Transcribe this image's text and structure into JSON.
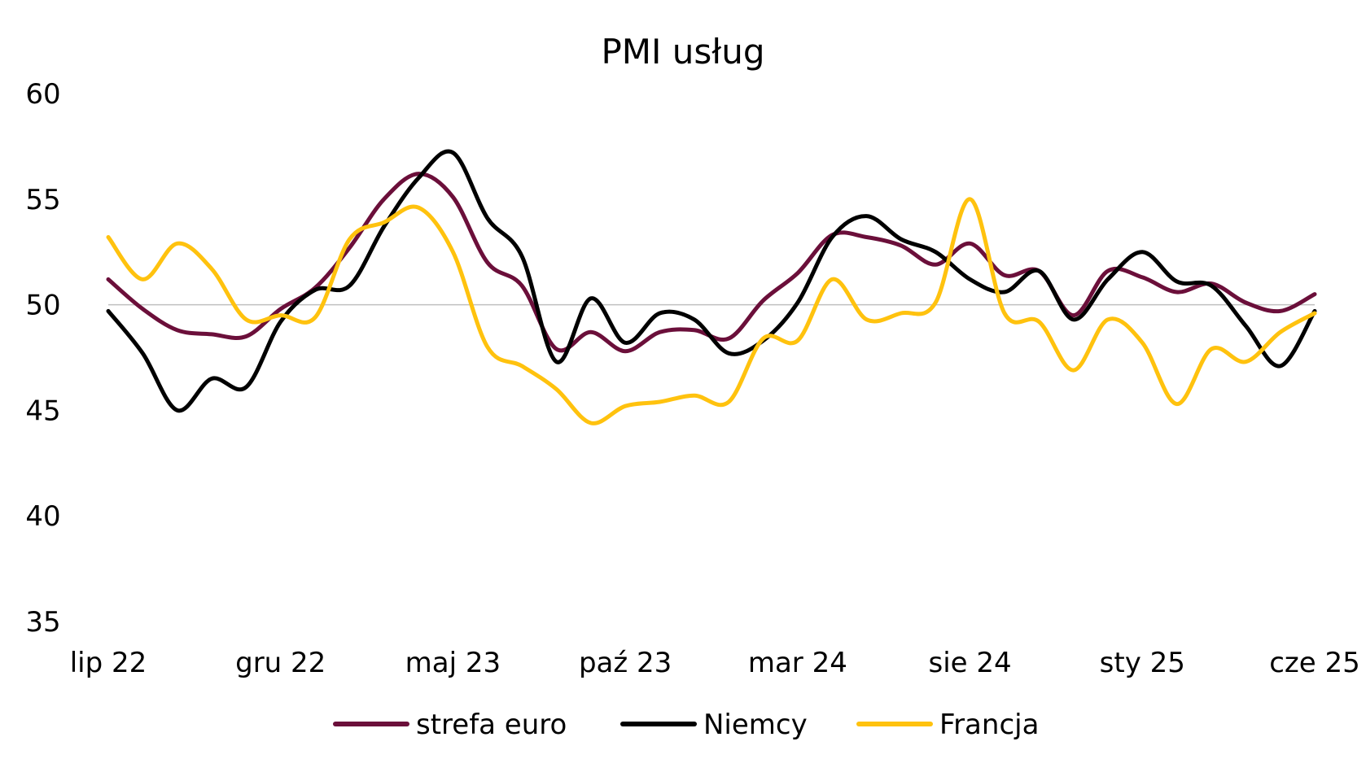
{
  "chart_data": {
    "type": "line",
    "title": "PMI usług",
    "xlabel": "",
    "ylabel": "",
    "ylim": [
      35,
      60
    ],
    "yticks": [
      "60",
      "55",
      "50",
      "45",
      "40",
      "35"
    ],
    "reference_line": 50,
    "x_tick_labels": [
      "lip 22",
      "gru 22",
      "maj 23",
      "paź 23",
      "mar 24",
      "sie 24",
      "sty 25",
      "cze 25"
    ],
    "x_tick_index": [
      0,
      5,
      10,
      15,
      20,
      25,
      30,
      35
    ],
    "legend_position": "bottom",
    "x": [
      "lip 22",
      "sie 22",
      "wrz 22",
      "paź 22",
      "lis 22",
      "gru 22",
      "sty 23",
      "lut 23",
      "mar 23",
      "kwi 23",
      "maj 23",
      "cze 23",
      "lip 23",
      "sie 23",
      "wrz 23",
      "paź 23",
      "lis 23",
      "gru 23",
      "sty 24",
      "lut 24",
      "mar 24",
      "kwi 24",
      "maj 24",
      "cze 24",
      "lip 24",
      "sie 24",
      "wrz 24",
      "paź 24",
      "lis 24",
      "gru 24",
      "sty 25",
      "lut 25",
      "mar 25",
      "kwi 25",
      "maj 25",
      "cze 25"
    ],
    "series": [
      {
        "name": "strefa euro",
        "color": "#6b0f3a",
        "values": [
          51.2,
          49.8,
          48.8,
          48.6,
          48.5,
          49.8,
          50.8,
          52.7,
          55.0,
          56.2,
          55.1,
          52.0,
          50.9,
          47.9,
          48.7,
          47.8,
          48.7,
          48.8,
          48.4,
          50.2,
          51.5,
          53.3,
          53.2,
          52.8,
          51.9,
          52.9,
          51.4,
          51.6,
          49.5,
          51.6,
          51.3,
          50.6,
          51.0,
          50.1,
          49.7,
          50.5
        ]
      },
      {
        "name": "Niemcy",
        "color": "#000000",
        "values": [
          49.7,
          47.7,
          45.0,
          46.5,
          46.1,
          49.2,
          50.7,
          50.9,
          53.7,
          56.0,
          57.2,
          54.1,
          52.3,
          47.3,
          50.3,
          48.2,
          49.6,
          49.3,
          47.7,
          48.3,
          50.1,
          53.2,
          54.2,
          53.1,
          52.5,
          51.2,
          50.6,
          51.6,
          49.3,
          51.2,
          52.5,
          51.1,
          50.9,
          49.0,
          47.1,
          49.7
        ]
      },
      {
        "name": "Francja",
        "color": "#ffc20e",
        "values": [
          53.2,
          51.2,
          52.9,
          51.7,
          49.3,
          49.5,
          49.4,
          53.1,
          53.9,
          54.6,
          52.5,
          48.0,
          47.1,
          46.0,
          44.4,
          45.2,
          45.4,
          45.7,
          45.4,
          48.4,
          48.3,
          51.2,
          49.3,
          49.6,
          50.1,
          55.0,
          49.6,
          49.2,
          46.9,
          49.3,
          48.2,
          45.3,
          47.9,
          47.3,
          48.7,
          49.6
        ]
      }
    ]
  }
}
